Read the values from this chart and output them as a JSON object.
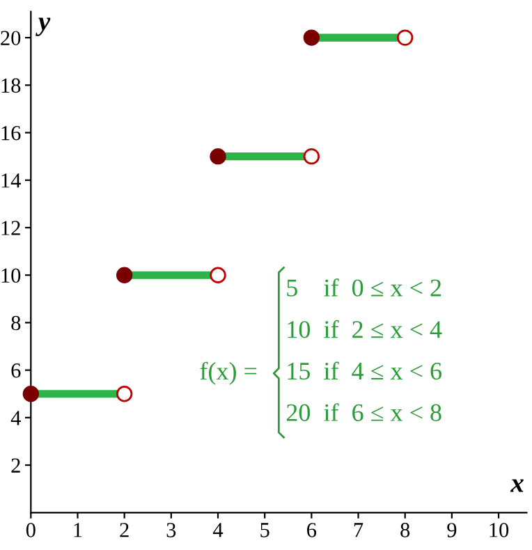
{
  "chart_data": {
    "type": "step",
    "xlabel": "x",
    "ylabel": "y",
    "series": [
      {
        "marker": "circle",
        "x": [
          0,
          2
        ],
        "values": [
          5,
          5
        ],
        "color": "#2db34a",
        "colors": [
          "#7a0000",
          "#c00000"
        ]
      },
      {
        "marker": "circle",
        "x": [
          2,
          4
        ],
        "values": [
          10,
          10
        ],
        "color": "#2db34a",
        "colors": [
          "#7a0000",
          "#c00000"
        ]
      },
      {
        "marker": "circle",
        "x": [
          4,
          6
        ],
        "values": [
          15,
          15
        ],
        "color": "#2db34a",
        "colors": [
          "#7a0000",
          "#c00000"
        ]
      },
      {
        "marker": "circle",
        "x": [
          6,
          8
        ],
        "values": [
          20,
          20
        ],
        "color": "#2db34a",
        "colors": [
          "#7a0000",
          "#c00000"
        ]
      }
    ],
    "xlim": [
      0,
      10.6
    ],
    "ylim": [
      0,
      21.1
    ],
    "xticks": [
      0,
      1,
      2,
      3,
      4,
      5,
      6,
      7,
      8,
      9,
      10
    ],
    "yticks": [
      2,
      4,
      6,
      8,
      10,
      12,
      14,
      16,
      18,
      20
    ],
    "grid": false,
    "annotations": [
      "f(x) =",
      "5    if  0 ≤ x < 2",
      "10  if  2 ≤ x < 4",
      "15  if  4 ≤ x < 6",
      "20  if  6 ≤ x < 8"
    ]
  }
}
